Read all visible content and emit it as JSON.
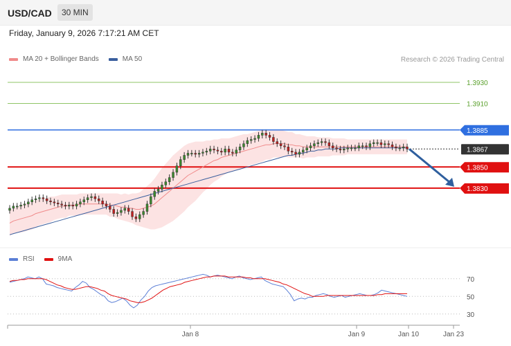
{
  "header": {
    "symbol": "USD/CAD",
    "timeframe": "30 MIN",
    "datetime": "Friday, January 9, 2026 7:17:21 AM CET"
  },
  "legend": {
    "ma20_label": "MA 20 + Bollinger Bands",
    "ma50_label": "MA 50",
    "ma20_color": "#f08a8a",
    "ma50_color": "#3a5f9e",
    "credit": "Research © 2026 Trading Central"
  },
  "rsi_legend": {
    "rsi_label": "RSI",
    "ma_label": "9MA",
    "rsi_color": "#5b7fd6",
    "ma_color": "#e01010"
  },
  "chart_data": [
    {
      "type": "candlestick",
      "title": "USD/CAD",
      "interval": "30 MIN",
      "y_range": [
        1.3775,
        1.3945
      ],
      "x_ticks": [
        "Jan 8",
        "Jan 9",
        "Jan 10",
        "Jan 23"
      ],
      "price_levels": [
        {
          "label": "1.3930",
          "value": 1.393,
          "kind": "target",
          "color": "#5aa02c"
        },
        {
          "label": "1.3910",
          "value": 1.391,
          "kind": "target",
          "color": "#5aa02c"
        },
        {
          "label": "1.3885",
          "value": 1.3885,
          "kind": "resistance",
          "color": "#2f6fe0"
        },
        {
          "label": "1.3867",
          "value": 1.3867,
          "kind": "last",
          "color": "#333333"
        },
        {
          "label": "1.3850",
          "value": 1.385,
          "kind": "support",
          "color": "#e01010"
        },
        {
          "label": "1.3830",
          "value": 1.383,
          "kind": "support",
          "color": "#e01010"
        }
      ],
      "forecast_arrow": {
        "from": 1.3867,
        "to": 1.383,
        "color": "#2f5f9e"
      },
      "close": [
        1.3811,
        1.3813,
        1.3813,
        1.3814,
        1.3815,
        1.3817,
        1.3819,
        1.382,
        1.3821,
        1.382,
        1.3818,
        1.3817,
        1.3816,
        1.3815,
        1.3814,
        1.3813,
        1.3814,
        1.3813,
        1.3815,
        1.3817,
        1.3819,
        1.3821,
        1.3822,
        1.382,
        1.3818,
        1.3815,
        1.3813,
        1.381,
        1.3806,
        1.3807,
        1.3809,
        1.3811,
        1.3808,
        1.3803,
        1.3801,
        1.3805,
        1.3808,
        1.3815,
        1.3822,
        1.3827,
        1.3829,
        1.3833,
        1.3836,
        1.384,
        1.3845,
        1.3851,
        1.3857,
        1.3861,
        1.3863,
        1.3863,
        1.3862,
        1.3863,
        1.3864,
        1.3865,
        1.3867,
        1.3866,
        1.3865,
        1.3864,
        1.3867,
        1.3864,
        1.3863,
        1.3866,
        1.3869,
        1.3872,
        1.3875,
        1.3876,
        1.3877,
        1.388,
        1.3882,
        1.388,
        1.3878,
        1.3874,
        1.3872,
        1.387,
        1.3869,
        1.3865,
        1.3864,
        1.3862,
        1.3864,
        1.3866,
        1.3868,
        1.387,
        1.3872,
        1.3873,
        1.3874,
        1.3873,
        1.387,
        1.3868,
        1.3867,
        1.3866,
        1.3867,
        1.3868,
        1.3868,
        1.3868,
        1.387,
        1.387,
        1.3869,
        1.3872,
        1.3873,
        1.3873,
        1.3871,
        1.3872,
        1.3871,
        1.3869,
        1.3868,
        1.3868,
        1.3869,
        1.3867
      ],
      "ma20": [
        1.3797,
        1.3799,
        1.38,
        1.3801,
        1.3802,
        1.3803,
        1.3804,
        1.3806,
        1.3807,
        1.3808,
        1.3809,
        1.381,
        1.3811,
        1.3812,
        1.3813,
        1.3813,
        1.3814,
        1.3814,
        1.3814,
        1.3815,
        1.3815,
        1.3815,
        1.3815,
        1.3815,
        1.3815,
        1.3815,
        1.3815,
        1.3814,
        1.3814,
        1.3813,
        1.3812,
        1.3812,
        1.3811,
        1.3811,
        1.381,
        1.381,
        1.3811,
        1.3812,
        1.3813,
        1.3815,
        1.3818,
        1.3821,
        1.3824,
        1.3827,
        1.383,
        1.3833,
        1.3836,
        1.3839,
        1.3842,
        1.3844,
        1.3846,
        1.3848,
        1.385,
        1.3852,
        1.3854,
        1.3856,
        1.3857,
        1.3859,
        1.386,
        1.3861,
        1.3862,
        1.3863,
        1.3864,
        1.3865,
        1.3866,
        1.3867,
        1.3868,
        1.3869,
        1.387,
        1.3871,
        1.3871,
        1.3872,
        1.3872,
        1.3872,
        1.3872,
        1.3871,
        1.3871,
        1.387,
        1.387,
        1.3869,
        1.3869,
        1.3869,
        1.3869,
        1.3869,
        1.3869,
        1.3869,
        1.3869,
        1.3869,
        1.3869,
        1.3869,
        1.3869,
        1.3869,
        1.3869,
        1.3869,
        1.3869,
        1.3869,
        1.3869,
        1.3869,
        1.3869,
        1.3869,
        1.3869,
        1.3869,
        1.3869,
        1.3869,
        1.3869,
        1.3869,
        1.3869,
        1.3869
      ],
      "ma50": [
        1.3786,
        1.3787,
        1.3788,
        1.3789,
        1.379,
        1.3791,
        1.3792,
        1.3793,
        1.3794,
        1.3795,
        1.3796,
        1.3797,
        1.3798,
        1.3799,
        1.38,
        1.3801,
        1.3802,
        1.3803,
        1.3804,
        1.3805,
        1.3806,
        1.3807,
        1.3808,
        1.3809,
        1.381,
        1.3811,
        1.3812,
        1.3813,
        1.3814,
        1.3815,
        1.3816,
        1.3817,
        1.3818,
        1.3819,
        1.382,
        1.3821,
        1.3822,
        1.3823,
        1.3824,
        1.3825,
        1.3826,
        1.3827,
        1.3828,
        1.3829,
        1.383,
        1.3831,
        1.3832,
        1.3833,
        1.3834,
        1.3835,
        1.3836,
        1.3837,
        1.3838,
        1.3839,
        1.384,
        1.3841,
        1.3842,
        1.3843,
        1.3844,
        1.3845,
        1.3846,
        1.3847,
        1.3848,
        1.3849,
        1.385,
        1.3851,
        1.3852,
        1.3853,
        1.3854,
        1.3855,
        1.3856,
        1.3857,
        1.3858,
        1.3859,
        1.386,
        1.3861,
        1.3861,
        1.3862,
        1.3863,
        1.3863,
        1.3864,
        1.3865,
        1.3865,
        1.3866,
        1.3866,
        1.3867,
        1.3867,
        1.3867,
        1.3867,
        1.3868,
        1.3868,
        1.3868,
        1.3868,
        1.3868,
        1.3868,
        1.3868,
        1.3868,
        1.3868,
        1.3868,
        1.3868,
        1.3868,
        1.3868,
        1.3868,
        1.3868,
        1.3868,
        1.3868,
        1.3868,
        1.3868
      ],
      "band_width": [
        0.0012,
        0.0012,
        0.0012,
        0.0013,
        0.0013,
        0.0013,
        0.0013,
        0.0013,
        0.0012,
        0.0012,
        0.0012,
        0.0012,
        0.0011,
        0.0011,
        0.0011,
        0.0011,
        0.001,
        0.001,
        0.001,
        0.001,
        0.001,
        0.001,
        0.001,
        0.001,
        0.001,
        0.001,
        0.001,
        0.0011,
        0.0011,
        0.0012,
        0.0012,
        0.0013,
        0.0013,
        0.0014,
        0.0015,
        0.0016,
        0.0018,
        0.002,
        0.0022,
        0.0024,
        0.0026,
        0.0028,
        0.0029,
        0.003,
        0.0031,
        0.0031,
        0.0031,
        0.0031,
        0.003,
        0.0029,
        0.0028,
        0.0026,
        0.0024,
        0.0023,
        0.0021,
        0.002,
        0.0019,
        0.0018,
        0.0017,
        0.0016,
        0.0016,
        0.0016,
        0.0016,
        0.0016,
        0.0015,
        0.0015,
        0.0015,
        0.0015,
        0.0015,
        0.0014,
        0.0014,
        0.0013,
        0.0013,
        0.0013,
        0.0012,
        0.0012,
        0.0012,
        0.0011,
        0.0011,
        0.0011,
        0.001,
        0.001,
        0.001,
        0.0009,
        0.0009,
        0.0009,
        0.0009,
        0.0008,
        0.0008,
        0.0008,
        0.0008,
        0.0007,
        0.0007,
        0.0007,
        0.0007,
        0.0007,
        0.0007,
        0.0007,
        0.0007,
        0.0007,
        0.0007,
        0.0007,
        0.0007,
        0.0007,
        0.0007,
        0.0007,
        0.0007,
        0.0007,
        0.0007,
        0.0007
      ]
    },
    {
      "type": "line",
      "title": "RSI",
      "y_ticks": [
        70,
        50,
        30
      ],
      "y_range": [
        22,
        80
      ],
      "series": [
        {
          "name": "RSI",
          "values": [
            66,
            67,
            68,
            69,
            70,
            72,
            71,
            70,
            72,
            70,
            64,
            63,
            62,
            60,
            59,
            58,
            57,
            56,
            60,
            63,
            67,
            65,
            60,
            58,
            55,
            52,
            50,
            45,
            43,
            44,
            46,
            48,
            45,
            40,
            37,
            40,
            46,
            50,
            56,
            60,
            62,
            63,
            64,
            65,
            66,
            67,
            68,
            69,
            70,
            71,
            72,
            73,
            74,
            75,
            74,
            72,
            73,
            74,
            73,
            72,
            71,
            70,
            72,
            73,
            71,
            70,
            69,
            70,
            71,
            72,
            68,
            66,
            64,
            63,
            62,
            61,
            57,
            52,
            45,
            47,
            48,
            47,
            49,
            49,
            51,
            52,
            53,
            52,
            50,
            49,
            50,
            51,
            49,
            50,
            51,
            52,
            53,
            52,
            51,
            51,
            52,
            54,
            57,
            56,
            55,
            54,
            53,
            52,
            51,
            50
          ]
        },
        {
          "name": "9MA",
          "values": [
            67,
            68,
            68,
            69,
            69,
            70,
            70,
            70,
            70,
            70,
            69,
            67,
            65,
            63,
            62,
            60,
            59,
            58,
            58,
            59,
            60,
            61,
            61,
            60,
            59,
            57,
            56,
            53,
            51,
            50,
            49,
            48,
            47,
            45,
            44,
            43,
            43,
            44,
            46,
            48,
            51,
            54,
            57,
            59,
            61,
            62,
            63,
            64,
            66,
            67,
            68,
            69,
            70,
            71,
            72,
            72,
            73,
            73,
            73,
            73,
            72,
            72,
            72,
            72,
            72,
            71,
            71,
            70,
            70,
            70,
            70,
            69,
            68,
            67,
            66,
            64,
            63,
            61,
            59,
            57,
            55,
            53,
            52,
            50,
            50,
            50,
            50,
            51,
            51,
            51,
            51,
            51,
            51,
            51,
            51,
            51,
            51,
            51,
            51,
            51,
            51,
            52,
            52,
            53,
            53,
            53,
            53,
            53,
            53,
            53
          ]
        }
      ]
    }
  ]
}
